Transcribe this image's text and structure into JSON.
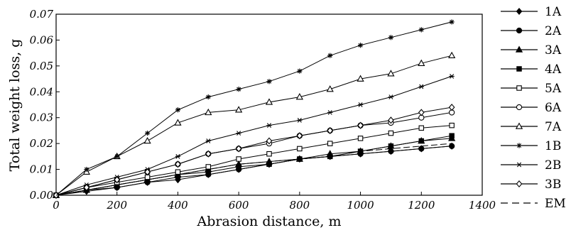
{
  "chart_data": {
    "type": "line",
    "xlabel": "Abrasion distance, m",
    "ylabel": "Total weight loss, g",
    "xlim": [
      0,
      1400
    ],
    "ylim": [
      0,
      0.07
    ],
    "xticks": [
      "0",
      "200",
      "400",
      "600",
      "800",
      "1000",
      "1200",
      "1400"
    ],
    "yticks": [
      "0.00",
      "0.01",
      "0.02",
      "0.03",
      "0.04",
      "0.05",
      "0.06",
      "0.07"
    ],
    "grid": false,
    "legend_position": "right",
    "x": [
      0,
      100,
      200,
      300,
      400,
      500,
      600,
      700,
      800,
      900,
      1000,
      1100,
      1200,
      1300
    ],
    "series": [
      {
        "name": "1A",
        "marker": "diamond-filled",
        "values": [
          0.0,
          0.0015,
          0.003,
          0.005,
          0.006,
          0.008,
          0.01,
          0.012,
          0.014,
          0.015,
          0.016,
          0.017,
          0.018,
          0.019
        ]
      },
      {
        "name": "2A",
        "marker": "circle-filled",
        "values": [
          0.0,
          0.002,
          0.003,
          0.005,
          0.007,
          0.008,
          0.01,
          0.012,
          0.014,
          0.015,
          0.016,
          0.017,
          0.018,
          0.019
        ]
      },
      {
        "name": "3A",
        "marker": "triangle-filled",
        "values": [
          0.0,
          0.002,
          0.004,
          0.006,
          0.008,
          0.01,
          0.012,
          0.013,
          0.014,
          0.016,
          0.017,
          0.019,
          0.021,
          0.022
        ]
      },
      {
        "name": "4A",
        "marker": "square-filled",
        "values": [
          0.0,
          0.002,
          0.004,
          0.006,
          0.008,
          0.009,
          0.011,
          0.012,
          0.014,
          0.015,
          0.017,
          0.019,
          0.021,
          0.023
        ]
      },
      {
        "name": "5A",
        "marker": "square-open",
        "values": [
          0.0,
          0.003,
          0.005,
          0.007,
          0.009,
          0.011,
          0.014,
          0.016,
          0.018,
          0.02,
          0.022,
          0.024,
          0.026,
          0.027
        ]
      },
      {
        "name": "6A",
        "marker": "circle-open",
        "values": [
          0.0,
          0.003,
          0.006,
          0.009,
          0.012,
          0.016,
          0.018,
          0.02,
          0.023,
          0.025,
          0.027,
          0.028,
          0.03,
          0.032
        ]
      },
      {
        "name": "7A",
        "marker": "triangle-open",
        "values": [
          0.0,
          0.009,
          0.015,
          0.021,
          0.028,
          0.032,
          0.033,
          0.036,
          0.038,
          0.041,
          0.045,
          0.047,
          0.051,
          0.054
        ]
      },
      {
        "name": "1B",
        "marker": "star",
        "values": [
          0.0,
          0.01,
          0.015,
          0.024,
          0.033,
          0.038,
          0.041,
          0.044,
          0.048,
          0.054,
          0.058,
          0.061,
          0.064,
          0.067
        ]
      },
      {
        "name": "2B",
        "marker": "cross",
        "values": [
          0.0,
          0.004,
          0.007,
          0.01,
          0.015,
          0.021,
          0.024,
          0.027,
          0.029,
          0.032,
          0.035,
          0.038,
          0.042,
          0.046
        ]
      },
      {
        "name": "3B",
        "marker": "diamond-open",
        "values": [
          0.0,
          0.003,
          0.006,
          0.009,
          0.012,
          0.016,
          0.018,
          0.021,
          0.023,
          0.025,
          0.027,
          0.029,
          0.032,
          0.034
        ]
      },
      {
        "name": "EM",
        "marker": "none",
        "values": [
          0.0,
          0.002,
          0.004,
          0.006,
          0.008,
          0.01,
          0.012,
          0.013,
          0.014,
          0.015,
          0.017,
          0.018,
          0.019,
          0.02
        ]
      }
    ]
  }
}
